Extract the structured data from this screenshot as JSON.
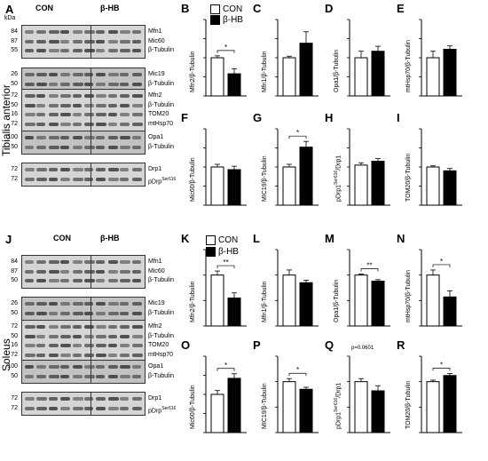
{
  "panel_letters": [
    "A",
    "B",
    "C",
    "D",
    "E",
    "F",
    "G",
    "H",
    "I",
    "J",
    "K",
    "L",
    "M",
    "N",
    "O",
    "P",
    "Q",
    "R"
  ],
  "tissues": {
    "top": "Tibialis anterior",
    "bottom": "Soleus"
  },
  "blot_headers": {
    "con": "CON",
    "bhb": "β-HB",
    "kda": "kDa"
  },
  "legend": {
    "con": "CON",
    "bhb": "β-HB"
  },
  "colors": {
    "con": "#ffffff",
    "bhb": "#000000",
    "outline": "#000000"
  },
  "blots_top": [
    {
      "kda": [
        "84",
        "87",
        "55"
      ],
      "proteins": [
        "Mfn1",
        "Mic60",
        "β-Tubulin"
      ]
    },
    {
      "kda": [
        "26",
        "50"
      ],
      "proteins": [
        "Mic19",
        "β-Tubulin"
      ]
    },
    {
      "kda": [
        "72",
        "50",
        "16",
        "72"
      ],
      "proteins": [
        "Mfn2",
        "β-Tubulin",
        "TOM20",
        "mtHsp70"
      ]
    },
    {
      "kda": [
        "100",
        "50"
      ],
      "proteins": [
        "Opa1",
        "β-Tubulin"
      ]
    },
    {
      "kda": [
        "72",
        "72"
      ],
      "proteins": [
        "Drp1",
        "pDrp"
      ],
      "sup": "Ser616"
    }
  ],
  "blots_bottom": [
    {
      "kda": [
        "84",
        "87",
        "50"
      ],
      "proteins": [
        "Mfn1",
        "Mic60",
        "β-Tubulin"
      ]
    },
    {
      "kda": [
        "26",
        "50"
      ],
      "proteins": [
        "Mic19",
        "β-Tubulin"
      ]
    },
    {
      "kda": [
        "72",
        "50",
        "16",
        "72"
      ],
      "proteins": [
        "Mfn2",
        "β-Tubulin",
        "TOM20",
        "mtHsp70"
      ]
    },
    {
      "kda": [
        "100",
        "50"
      ],
      "proteins": [
        "Opa1",
        "β-Tubulin"
      ]
    },
    {
      "kda": [
        "72",
        "72"
      ],
      "proteins": [
        "Drp1",
        "pDrp"
      ],
      "sup": "Ser616"
    }
  ],
  "chart_data": [
    {
      "panel": "B",
      "type": "bar",
      "ylabel": "Mfn2/β-Tubulin",
      "categories": [
        "CON",
        "β-HB"
      ],
      "values": [
        1.0,
        0.58
      ],
      "errors": [
        0.05,
        0.13
      ],
      "ylim": [
        0,
        2.0
      ],
      "sig": "*"
    },
    {
      "panel": "C",
      "type": "bar",
      "ylabel": "Mfn1/β-Tubulin",
      "categories": [
        "CON",
        "β-HB"
      ],
      "values": [
        1.0,
        1.38
      ],
      "errors": [
        0.04,
        0.3
      ],
      "ylim": [
        0,
        2.0
      ],
      "sig": ""
    },
    {
      "panel": "D",
      "type": "bar",
      "ylabel": "Opa1/β-Tubulin",
      "categories": [
        "CON",
        "β-HB"
      ],
      "values": [
        1.0,
        1.17
      ],
      "errors": [
        0.17,
        0.13
      ],
      "ylim": [
        0,
        2.0
      ],
      "sig": ""
    },
    {
      "panel": "E",
      "type": "bar",
      "ylabel": "mtHsp70/β-Tubulin",
      "categories": [
        "CON",
        "β-HB"
      ],
      "values": [
        1.0,
        1.22
      ],
      "errors": [
        0.17,
        0.09
      ],
      "ylim": [
        0,
        2.0
      ],
      "sig": ""
    },
    {
      "panel": "F",
      "type": "bar",
      "ylabel": "Mic60/β-Tubulin",
      "categories": [
        "CON",
        "β-HB"
      ],
      "values": [
        1.0,
        0.93
      ],
      "errors": [
        0.07,
        0.09
      ],
      "ylim": [
        0,
        2.0
      ],
      "sig": ""
    },
    {
      "panel": "G",
      "type": "bar",
      "ylabel": "MIC19/β-Tubulin",
      "categories": [
        "CON",
        "β-HB"
      ],
      "values": [
        1.0,
        1.52
      ],
      "errors": [
        0.07,
        0.15
      ],
      "ylim": [
        0,
        2.0
      ],
      "sig": "*"
    },
    {
      "panel": "H",
      "type": "bar",
      "ylabel": "pDrp1Ser616/Drp1",
      "categories": [
        "CON",
        "β-HB"
      ],
      "values": [
        1.05,
        1.15
      ],
      "errors": [
        0.06,
        0.07
      ],
      "ylim": [
        0,
        2.0
      ],
      "sig": ""
    },
    {
      "panel": "I",
      "type": "bar",
      "ylabel": "TOM20/β-Tubulin",
      "categories": [
        "CON",
        "β-HB"
      ],
      "values": [
        1.0,
        0.9
      ],
      "errors": [
        0.03,
        0.06
      ],
      "ylim": [
        0,
        2.0
      ],
      "sig": ""
    },
    {
      "panel": "K",
      "type": "bar",
      "ylabel": "Mfn2/β-Tubulin",
      "categories": [
        "CON",
        "β-HB"
      ],
      "values": [
        1.0,
        0.55
      ],
      "errors": [
        0.08,
        0.1
      ],
      "ylim": [
        0,
        1.5
      ],
      "sig": "**"
    },
    {
      "panel": "L",
      "type": "bar",
      "ylabel": "Mfn1/β-Tubulin",
      "categories": [
        "CON",
        "β-HB"
      ],
      "values": [
        1.0,
        0.85
      ],
      "errors": [
        0.1,
        0.05
      ],
      "ylim": [
        0,
        1.5
      ],
      "sig": ""
    },
    {
      "panel": "M",
      "type": "bar",
      "ylabel": "Opa1/β-Tubulin",
      "categories": [
        "CON",
        "β-HB"
      ],
      "values": [
        1.0,
        0.88
      ],
      "errors": [
        0.02,
        0.03
      ],
      "ylim": [
        0,
        1.5
      ],
      "sig": "**"
    },
    {
      "panel": "N",
      "type": "bar",
      "ylabel": "mtHsp70/β-Tubulin",
      "categories": [
        "CON",
        "β-HB"
      ],
      "values": [
        1.0,
        0.57
      ],
      "errors": [
        0.1,
        0.12
      ],
      "ylim": [
        0,
        1.5
      ],
      "sig": "*"
    },
    {
      "panel": "O",
      "type": "bar",
      "ylabel": "Mic60/β-Tubulin",
      "categories": [
        "CON",
        "β-HB"
      ],
      "values": [
        1.0,
        1.42
      ],
      "errors": [
        0.1,
        0.12
      ],
      "ylim": [
        0,
        2.0
      ],
      "sig": "*"
    },
    {
      "panel": "P",
      "type": "bar",
      "ylabel": "MIC19/β-Tubulin",
      "categories": [
        "CON",
        "β-HB"
      ],
      "values": [
        1.0,
        0.85
      ],
      "errors": [
        0.06,
        0.04
      ],
      "ylim": [
        0,
        1.5
      ],
      "sig": "*"
    },
    {
      "panel": "Q",
      "type": "bar",
      "ylabel": "pDrp1Ser616/Drp1",
      "categories": [
        "CON",
        "β-HB"
      ],
      "values": [
        1.0,
        0.82
      ],
      "errors": [
        0.06,
        0.1
      ],
      "ylim": [
        0,
        1.5
      ],
      "sig": "",
      "pval": "p=0.0601"
    },
    {
      "panel": "R",
      "type": "bar",
      "ylabel": "TOM20/β-Tubulin",
      "categories": [
        "CON",
        "β-HB"
      ],
      "values": [
        1.0,
        1.12
      ],
      "errors": [
        0.03,
        0.04
      ],
      "ylim": [
        0,
        1.5
      ],
      "sig": "*"
    }
  ]
}
